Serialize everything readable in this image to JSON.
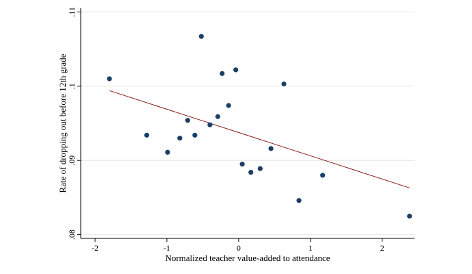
{
  "chart_data": {
    "type": "scatter",
    "xlabel": "Normalized teacher value-added to attendance",
    "ylabel": "Rate of dropping out before 12th grade",
    "xlim": [
      -2.2,
      2.45
    ],
    "ylim": [
      0.0795,
      0.1105
    ],
    "x_ticks": [
      -2,
      -1,
      0,
      1,
      2
    ],
    "x_tick_labels": [
      "-2",
      "-1",
      "0",
      "1",
      "2"
    ],
    "y_ticks": [
      0.08,
      0.09,
      0.1,
      0.11
    ],
    "y_tick_labels": [
      ".08",
      ".09",
      ".1",
      ".11"
    ],
    "grid": "horizontal",
    "points": [
      {
        "x": -1.8,
        "y": 0.101
      },
      {
        "x": -1.28,
        "y": 0.0934
      },
      {
        "x": -0.99,
        "y": 0.0911
      },
      {
        "x": -0.82,
        "y": 0.093
      },
      {
        "x": -0.71,
        "y": 0.0954
      },
      {
        "x": -0.61,
        "y": 0.0934
      },
      {
        "x": -0.52,
        "y": 0.1067
      },
      {
        "x": -0.4,
        "y": 0.0948
      },
      {
        "x": -0.29,
        "y": 0.0959
      },
      {
        "x": -0.23,
        "y": 0.1017
      },
      {
        "x": -0.14,
        "y": 0.0974
      },
      {
        "x": -0.04,
        "y": 0.1022
      },
      {
        "x": 0.05,
        "y": 0.0895
      },
      {
        "x": 0.17,
        "y": 0.0884
      },
      {
        "x": 0.3,
        "y": 0.0889
      },
      {
        "x": 0.45,
        "y": 0.0916
      },
      {
        "x": 0.63,
        "y": 0.1003
      },
      {
        "x": 0.84,
        "y": 0.0846
      },
      {
        "x": 1.17,
        "y": 0.088
      },
      {
        "x": 2.38,
        "y": 0.0825
      }
    ],
    "fit_line": {
      "x": [
        -1.8,
        2.38
      ],
      "y": [
        0.0994,
        0.0863
      ]
    },
    "colors": {
      "points": "#1b3f66",
      "fit": "#8b1a1a",
      "grid": "#e6e6e6",
      "axis": "#000000"
    }
  }
}
